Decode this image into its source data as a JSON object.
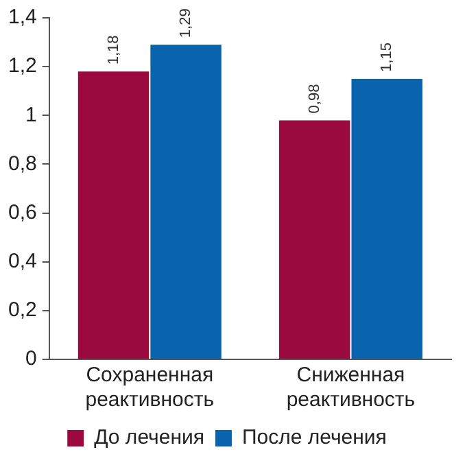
{
  "chart_data": {
    "type": "bar",
    "categories": [
      "Сохраненная реактивность",
      "Сниженная реактивность"
    ],
    "series": [
      {
        "name": "До лечения",
        "color": "#9b0a3e",
        "values": [
          1.18,
          0.98
        ],
        "value_labels": [
          "1,18",
          "0,98"
        ]
      },
      {
        "name": "После лечения",
        "color": "#0a64ad",
        "values": [
          1.29,
          1.15
        ],
        "value_labels": [
          "1,29",
          "1,15"
        ]
      }
    ],
    "ylim": [
      0,
      1.4
    ],
    "yticks": [
      {
        "value": 0,
        "label": "0"
      },
      {
        "value": 0.2,
        "label": "0,2"
      },
      {
        "value": 0.4,
        "label": "0,4"
      },
      {
        "value": 0.6,
        "label": "0,6"
      },
      {
        "value": 0.8,
        "label": "0,8"
      },
      {
        "value": 1,
        "label": "1"
      },
      {
        "value": 1.2,
        "label": "1,2"
      },
      {
        "value": 1.4,
        "label": "1,4"
      }
    ],
    "grid": false,
    "legend": "bottom"
  }
}
